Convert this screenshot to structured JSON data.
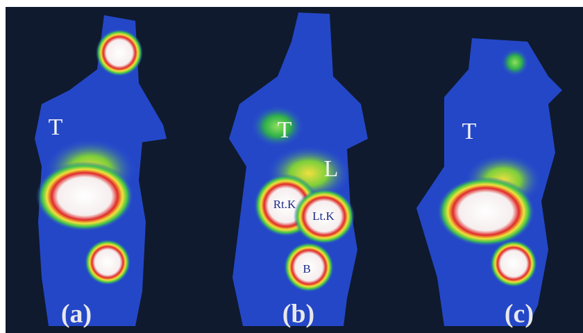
{
  "panels": [
    {
      "label": "(a)",
      "annotations": [
        "T"
      ]
    },
    {
      "label": "(b)",
      "annotations": [
        "T",
        "L",
        "Rt.K",
        "Lt.K",
        "B"
      ]
    },
    {
      "label": "(c)",
      "annotations": [
        "T"
      ]
    }
  ]
}
